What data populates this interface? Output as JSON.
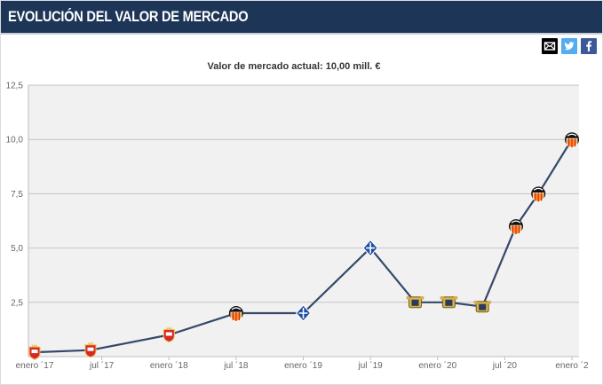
{
  "header": {
    "title": "EVOLUCIÓN DEL VALOR DE MERCADO"
  },
  "share": {
    "mail_icon": "envelope-icon",
    "twitter_icon": "twitter-icon",
    "facebook_icon": "facebook-icon"
  },
  "colors": {
    "header_bg": "#1d3557",
    "line": "#35486b",
    "twitter": "#55acee",
    "facebook": "#3b5998"
  },
  "chart_data": {
    "type": "line",
    "title": "Valor de mercado actual: 10,00 mill. €",
    "xlabel": "",
    "ylabel": "",
    "ylim": [
      0,
      12.5
    ],
    "yticks": [
      "",
      "2,5",
      "5,0",
      "7,5",
      "10,0",
      "12,5"
    ],
    "xticks": [
      {
        "date": "2017-01",
        "label": "enero ´17"
      },
      {
        "date": "2017-07",
        "label": "jul ´17"
      },
      {
        "date": "2018-01",
        "label": "enero ´18"
      },
      {
        "date": "2018-07",
        "label": "jul ´18"
      },
      {
        "date": "2019-01",
        "label": "enero ´19"
      },
      {
        "date": "2019-07",
        "label": "jul ´19"
      },
      {
        "date": "2020-01",
        "label": "enero ´20"
      },
      {
        "date": "2020-07",
        "label": "jul ´20"
      },
      {
        "date": "2021-01",
        "label": "enero ´2"
      }
    ],
    "grid": true,
    "series": [
      {
        "points": [
          {
            "date": "2017-01",
            "value": 0.2,
            "club": "red"
          },
          {
            "date": "2017-06",
            "value": 0.3,
            "club": "red"
          },
          {
            "date": "2018-01",
            "value": 1.0,
            "club": "red"
          },
          {
            "date": "2018-07",
            "value": 2.0,
            "club": "valencia"
          },
          {
            "date": "2019-01",
            "value": 2.0,
            "club": "tenerife"
          },
          {
            "date": "2019-07",
            "value": 5.0,
            "club": "tenerife"
          },
          {
            "date": "2019-11",
            "value": 2.5,
            "club": "gold"
          },
          {
            "date": "2020-02",
            "value": 2.5,
            "club": "gold"
          },
          {
            "date": "2020-05",
            "value": 2.3,
            "club": "gold"
          },
          {
            "date": "2020-08",
            "value": 6.0,
            "club": "valencia"
          },
          {
            "date": "2020-10",
            "value": 7.5,
            "club": "valencia"
          },
          {
            "date": "2021-01",
            "value": 10.0,
            "club": "valencia"
          }
        ]
      }
    ]
  }
}
